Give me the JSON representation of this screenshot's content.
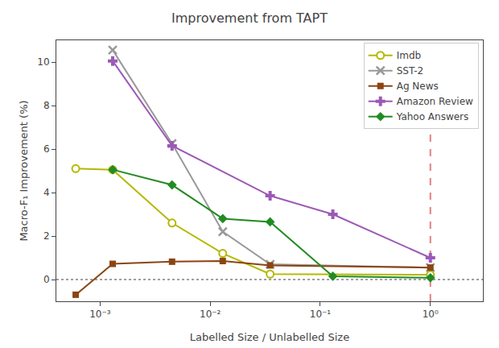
{
  "chart_data": {
    "type": "line",
    "title": "Improvement from TAPT",
    "x_label": "Labelled Size / Unlabelled Size",
    "y_label": "Macro-F₁ Improvement (%)",
    "log": "x",
    "xlim": [
      0.0004,
      3.0
    ],
    "xticks": [
      {
        "value": 0.001,
        "label": "10⁻³"
      },
      {
        "value": 0.01,
        "label": "10⁻²"
      },
      {
        "value": 0.1,
        "label": "10⁻¹"
      },
      {
        "value": 1,
        "label": "10⁰"
      }
    ],
    "ylim": [
      -1.0,
      11.0
    ],
    "yticks": [
      0,
      2,
      4,
      6,
      8,
      10
    ],
    "grid": false,
    "legend": "upper right",
    "background_color": "#ffffff",
    "series": [
      {
        "name": "Imdb",
        "color": "#b5b800",
        "marker": "circle",
        "x": [
          0.0006,
          0.0013,
          0.0045,
          0.013,
          0.035,
          1.0
        ],
        "values": [
          5.1,
          5.05,
          2.6,
          1.2,
          0.25,
          0.22
        ]
      },
      {
        "name": "SST-2",
        "color": "#999999",
        "marker": "x",
        "x": [
          0.0013,
          0.0045,
          0.013,
          0.035,
          1.0
        ],
        "values": [
          10.55,
          6.25,
          2.2,
          0.7,
          0.55
        ]
      },
      {
        "name": "Ag News",
        "color": "#8b4513",
        "marker": "square",
        "x": [
          0.0006,
          0.0013,
          0.0045,
          0.013,
          0.035,
          1.0
        ],
        "values": [
          -0.7,
          0.72,
          0.82,
          0.85,
          0.65,
          0.55
        ]
      },
      {
        "name": "Amazon Review",
        "color": "#9b59b6",
        "marker": "plus",
        "x": [
          0.0013,
          0.0045,
          0.035,
          0.13,
          1.0
        ],
        "values": [
          10.05,
          6.15,
          3.85,
          3.0,
          1.0
        ]
      },
      {
        "name": "Yahoo Answers",
        "color": "#228B22",
        "marker": "diamond",
        "x": [
          0.0013,
          0.0045,
          0.013,
          0.035,
          0.13,
          1.0
        ],
        "values": [
          5.05,
          4.35,
          2.8,
          2.65,
          0.15,
          0.08
        ]
      }
    ],
    "reference_lines": [
      {
        "axis": "y",
        "value": 0,
        "line_style": "dotted",
        "color": "gray"
      },
      {
        "axis": "x",
        "value": 1.0,
        "line_style": "dashed",
        "color": "#e08080"
      }
    ]
  }
}
